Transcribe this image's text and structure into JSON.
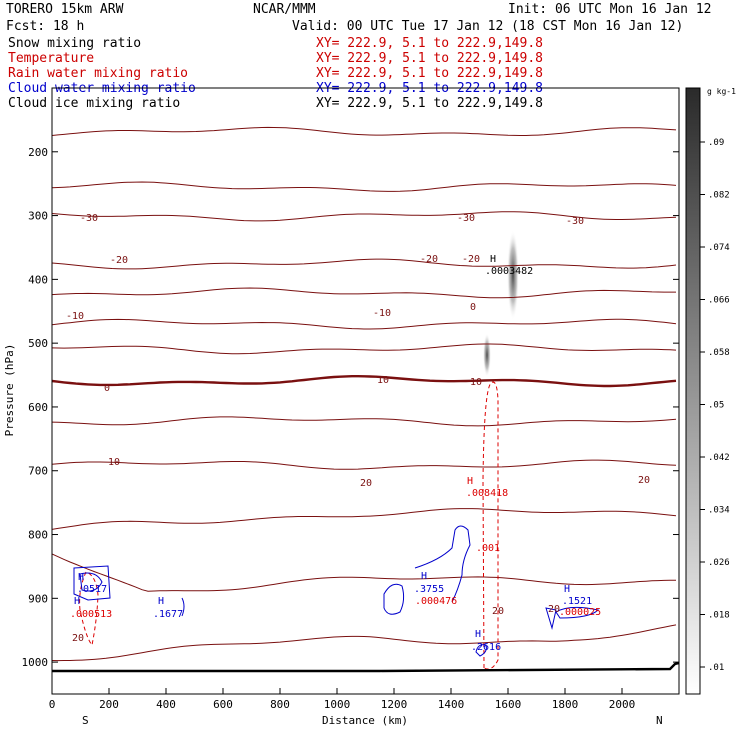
{
  "header": {
    "model": "TORERO  15km ARW",
    "org": "NCAR/MMM",
    "init": "Init: 06 UTC Mon 16 Jan 12",
    "fcst": "Fcst:    18 h",
    "valid": "Valid: 00 UTC Tue 17 Jan 12 (18 CST Mon 16 Jan 12)"
  },
  "legend": [
    {
      "label": "Snow mixing ratio",
      "coords": "XY= 222.9,  5.1 to 222.9,149.8",
      "color": "#000000"
    },
    {
      "label": "Temperature",
      "coords": "XY= 222.9,  5.1 to 222.9,149.8",
      "color": "#cc0000"
    },
    {
      "label": "Rain water mixing ratio",
      "coords": "XY= 222.9,  5.1 to 222.9,149.8",
      "color": "#cc0000"
    },
    {
      "label": "Cloud water mixing ratio",
      "coords": "XY= 222.9,  5.1 to 222.9,149.8",
      "color": "#0000cc"
    },
    {
      "label": "Cloud ice mixing ratio",
      "coords": "XY= 222.9,  5.1 to 222.9,149.8",
      "color": "#000000"
    }
  ],
  "colors": {
    "temperature": "#7a1010",
    "rain": "#dd0000",
    "cloud_water": "#0000cc",
    "snow_shading": "#555555"
  },
  "chart_data": {
    "type": "cross-section",
    "xlabel": "Distance (km)",
    "ylabel": "Pressure (hPa)",
    "xlim": [
      0,
      2200
    ],
    "ylim_pressure": [
      100,
      1050
    ],
    "xticks": [
      "0",
      "200",
      "400",
      "600",
      "800",
      "1000",
      "1200",
      "1400",
      "1600",
      "1800",
      "2000"
    ],
    "xtick_values": [
      0,
      200,
      400,
      600,
      800,
      1000,
      1200,
      1400,
      1600,
      1800,
      2000
    ],
    "yticks": [
      "200",
      "300",
      "400",
      "500",
      "600",
      "700",
      "800",
      "900",
      "1000"
    ],
    "ytick_values": [
      200,
      300,
      400,
      500,
      600,
      700,
      800,
      900,
      1000
    ],
    "endpoints": {
      "left": "S",
      "right": "N"
    },
    "colorbar": {
      "unit": "g kg-1",
      "ticks": [
        ".01",
        ".018",
        ".026",
        ".034",
        ".042",
        ".05",
        ".058",
        ".066",
        ".074",
        ".082",
        ".09"
      ]
    },
    "temperature_isotherms_C": [
      -35,
      -30,
      -25,
      -20,
      -15,
      -10,
      -5,
      0,
      5,
      10,
      15,
      20,
      25
    ],
    "temperature_labels": [
      "-30",
      "-30",
      "-30",
      "-20",
      "-20",
      "-20",
      "-10",
      "-10",
      "0",
      "0",
      "10",
      "10",
      "10",
      "20",
      "20",
      "20"
    ],
    "rain_max": {
      "label": "H",
      "value": ".008418",
      "x_km": 1500,
      "p_hPa": 720
    },
    "rain_labels": [
      ".001",
      ".000513",
      ".000476",
      ".000025"
    ],
    "cloud_water_maxima": [
      {
        "label": "H",
        "value": ".0517",
        "x_km": 120,
        "p_hPa": 880
      },
      {
        "label": "H",
        "value": ".1677",
        "x_km": 400,
        "p_hPa": 900
      },
      {
        "label": "H",
        "value": ".3755",
        "x_km": 1290,
        "p_hPa": 870
      },
      {
        "label": "H",
        "value": ".2616",
        "x_km": 1500,
        "p_hPa": 975
      },
      {
        "label": "H",
        "value": ".1521",
        "x_km": 1790,
        "p_hPa": 880
      }
    ],
    "snow_max": {
      "label": "H",
      "value": ".0003482",
      "x_km": 1550,
      "p_hPa": 360
    },
    "terrain_label": "0"
  }
}
